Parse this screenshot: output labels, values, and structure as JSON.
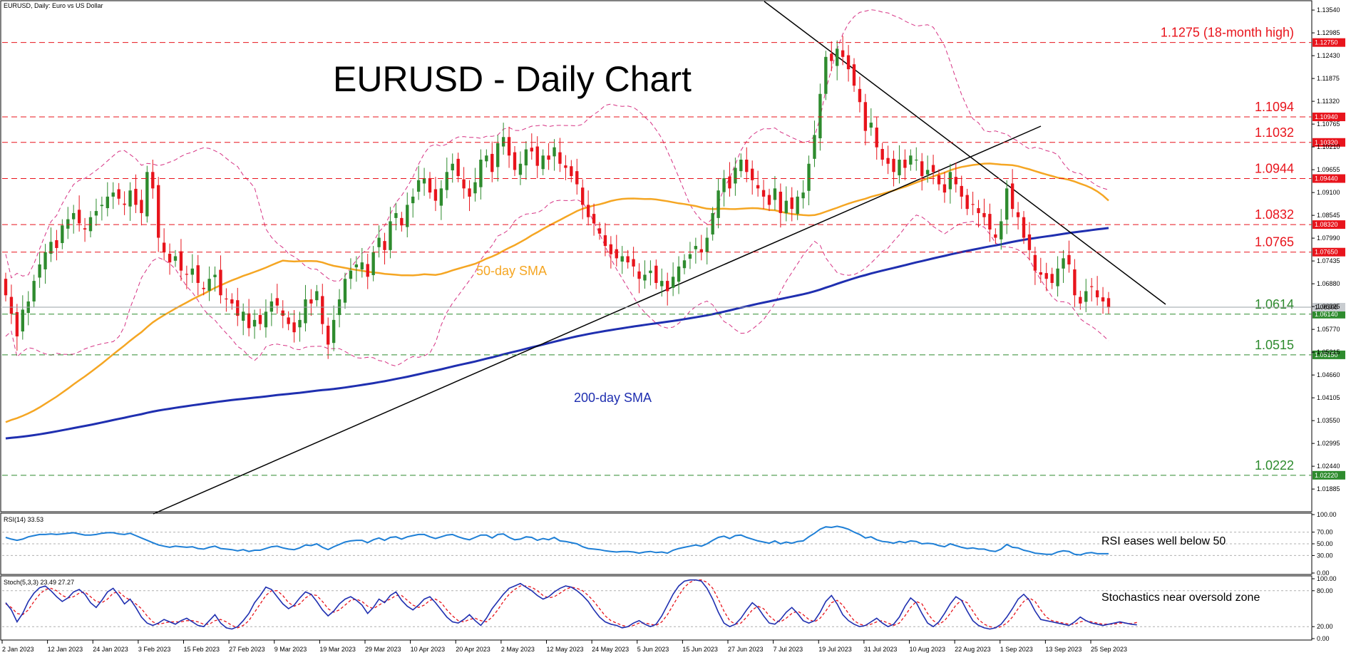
{
  "header": {
    "title": "EURUSD, Daily:  Euro vs US Dollar"
  },
  "chart_title": "EURUSD - Daily Chart",
  "annotations": {
    "sma50": "50-day SMA",
    "sma200": "200-day SMA",
    "rsi_note": "RSI eases well below 50",
    "stoch_note": "Stochastics near oversold zone"
  },
  "indicators": {
    "rsi_label": "RSI(14) 33.53",
    "stoch_label": "Stoch(5,3,3) 23.49 27.27"
  },
  "colors": {
    "bull": "#2e8b2e",
    "bear": "#e8141c",
    "sma50": "#f5a623",
    "sma200": "#1f2fb0",
    "bollinger": "#d63384",
    "resistance": "#e8141c",
    "support": "#2e8b2e",
    "rsi": "#1e7fd6",
    "stoch_main": "#1f2fb0",
    "stoch_signal": "#e8141c"
  },
  "chart_data": {
    "type": "candlestick",
    "title": "EURUSD - Daily Chart",
    "ylim": [
      1.0135,
      1.1375
    ],
    "y_ticks": [
      "1.13540",
      "1.12985",
      "1.12430",
      "1.11875",
      "1.11320",
      "1.10765",
      "1.10210",
      "1.09655",
      "1.09100",
      "1.08545",
      "1.07990",
      "1.07435",
      "1.06880",
      "1.06325",
      "1.05770",
      "1.05215",
      "1.04660",
      "1.04105",
      "1.03550",
      "1.02995",
      "1.02440",
      "1.01885"
    ],
    "x_ticks": [
      "2 Jan 2023",
      "12 Jan 2023",
      "24 Jan 2023",
      "3 Feb 2023",
      "15 Feb 2023",
      "27 Feb 2023",
      "9 Mar 2023",
      "19 Mar 2023",
      "29 Mar 2023",
      "10 Apr 2023",
      "20 Apr 2023",
      "2 May 2023",
      "12 May 2023",
      "24 May 2023",
      "5 Jun 2023",
      "15 Jun 2023",
      "27 Jun 2023",
      "7 Jul 2023",
      "19 Jul 2023",
      "31 Jul 2023",
      "10 Aug 2023",
      "22 Aug 2023",
      "1 Sep 2023",
      "13 Sep 2023",
      "25 Sep 2023"
    ],
    "levels": [
      {
        "value": 1.1275,
        "label": "1.1275 (18-month high)",
        "tag": "1.12750",
        "kind": "resistance"
      },
      {
        "value": 1.1094,
        "label": "1.1094",
        "tag": "1.10940",
        "kind": "resistance"
      },
      {
        "value": 1.1032,
        "label": "1.1032",
        "tag": "1.10320",
        "kind": "resistance"
      },
      {
        "value": 1.0944,
        "label": "1.0944",
        "tag": "1.09440",
        "kind": "resistance"
      },
      {
        "value": 1.0832,
        "label": "1.0832",
        "tag": "1.08320",
        "kind": "resistance"
      },
      {
        "value": 1.0765,
        "label": "1.0765",
        "tag": "1.07650",
        "kind": "resistance"
      },
      {
        "value": 1.0614,
        "label": "1.0614",
        "tag": "1.06140",
        "kind": "support"
      },
      {
        "value": 1.0515,
        "label": "1.0515",
        "tag": "1.05150",
        "kind": "support"
      },
      {
        "value": 1.0222,
        "label": "1.0222",
        "tag": "1.02220",
        "kind": "support"
      }
    ],
    "current_price": {
      "value": 1.0631,
      "tag": "1.06308"
    },
    "closes": [
      1.066,
      1.0615,
      1.056,
      1.0625,
      1.0645,
      1.0695,
      1.0735,
      1.0765,
      1.079,
      1.0775,
      1.083,
      1.0845,
      1.086,
      1.0835,
      1.082,
      1.085,
      1.0865,
      1.088,
      1.09,
      1.091,
      1.0895,
      1.088,
      1.0915,
      1.088,
      1.086,
      1.096,
      1.092,
      1.08,
      1.0765,
      1.074,
      1.0755,
      1.072,
      1.071,
      1.0725,
      1.069,
      1.0675,
      1.07,
      1.071,
      1.066,
      1.065,
      1.064,
      1.061,
      1.062,
      1.058,
      1.06,
      1.059,
      1.062,
      1.0645,
      1.0635,
      1.061,
      1.059,
      1.057,
      1.06,
      1.065,
      1.064,
      1.067,
      1.059,
      1.054,
      1.06,
      1.065,
      1.07,
      1.072,
      1.0735,
      1.074,
      1.0705,
      1.0765,
      1.08,
      1.077,
      1.084,
      1.086,
      1.083,
      1.088,
      1.09,
      1.094,
      1.0945,
      1.091,
      1.089,
      1.092,
      1.096,
      1.098,
      1.095,
      1.092,
      1.09,
      1.0935,
      1.099,
      1.1,
      1.096,
      1.103,
      1.1045,
      1.1,
      1.0965,
      1.098,
      1.1015,
      1.101,
      1.0975,
      1.1,
      1.099,
      1.102,
      1.098,
      1.097,
      1.095,
      1.093,
      1.088,
      1.085,
      1.0835,
      1.081,
      1.078,
      1.076,
      1.075,
      1.0755,
      1.074,
      1.073,
      1.07,
      1.071,
      1.072,
      1.069,
      1.0695,
      1.067,
      1.0705,
      1.073,
      1.0745,
      1.076,
      1.078,
      1.0765,
      1.08,
      1.086,
      1.0915,
      1.0945,
      1.092,
      1.097,
      1.099,
      1.096,
      1.094,
      1.092,
      1.09,
      1.088,
      1.092,
      1.086,
      1.089,
      1.087,
      1.09,
      1.091,
      1.098,
      1.105,
      1.115,
      1.124,
      1.123,
      1.126,
      1.124,
      1.121,
      1.117,
      1.113,
      1.106,
      1.108,
      1.102,
      1.099,
      1.098,
      1.096,
      1.099,
      1.097,
      1.1,
      1.099,
      1.095,
      1.0965,
      1.096,
      1.093,
      1.091,
      1.096,
      1.093,
      1.09,
      1.087,
      1.088,
      1.086,
      1.085,
      1.082,
      1.08,
      1.084,
      1.092,
      1.087,
      1.085,
      1.08,
      1.077,
      1.072,
      1.071,
      1.07,
      1.069,
      1.0725,
      1.075,
      1.0735,
      1.066,
      1.064,
      1.067,
      1.068,
      1.0655,
      1.0645,
      1.063
    ],
    "rsi": {
      "ylim": [
        0,
        100
      ],
      "ticks": [
        "100.00",
        "70.00",
        "50.00",
        "30.00",
        "0.00"
      ],
      "values": [
        61,
        58,
        56,
        58,
        62,
        64,
        66,
        66,
        67,
        66,
        67,
        68,
        69,
        67,
        65,
        65,
        66,
        68,
        69,
        69,
        67,
        66,
        68,
        64,
        60,
        56,
        52,
        48,
        46,
        44,
        46,
        45,
        44,
        45,
        42,
        41,
        44,
        46,
        42,
        41,
        40,
        38,
        40,
        37,
        39,
        39,
        42,
        45,
        46,
        43,
        41,
        40,
        43,
        48,
        47,
        50,
        44,
        40,
        45,
        49,
        53,
        55,
        56,
        56,
        52,
        57,
        60,
        56,
        61,
        62,
        58,
        62,
        64,
        66,
        66,
        62,
        59,
        62,
        65,
        66,
        62,
        59,
        57,
        61,
        65,
        65,
        60,
        66,
        67,
        61,
        57,
        58,
        62,
        61,
        56,
        59,
        57,
        61,
        55,
        54,
        52,
        50,
        45,
        42,
        41,
        40,
        38,
        37,
        36,
        37,
        37,
        36,
        34,
        36,
        37,
        35,
        36,
        34,
        39,
        42,
        44,
        46,
        48,
        46,
        50,
        56,
        61,
        63,
        59,
        64,
        65,
        61,
        58,
        55,
        53,
        51,
        55,
        50,
        53,
        51,
        54,
        55,
        62,
        68,
        75,
        79,
        78,
        80,
        78,
        75,
        70,
        66,
        60,
        62,
        57,
        54,
        53,
        51,
        54,
        52,
        55,
        54,
        50,
        51,
        50,
        47,
        45,
        50,
        47,
        44,
        42,
        43,
        41,
        41,
        38,
        37,
        41,
        49,
        44,
        43,
        39,
        37,
        34,
        33,
        32,
        32,
        36,
        38,
        37,
        32,
        31,
        34,
        35,
        33,
        33,
        33
      ]
    },
    "stoch": {
      "ylim": [
        0,
        100
      ],
      "ticks": [
        "100.00",
        "80.00",
        "20.00",
        "0.00"
      ],
      "main": [
        60,
        48,
        28,
        42,
        62,
        76,
        85,
        88,
        80,
        70,
        62,
        68,
        78,
        82,
        74,
        60,
        52,
        64,
        78,
        84,
        72,
        58,
        66,
        52,
        36,
        26,
        22,
        26,
        32,
        28,
        24,
        30,
        34,
        28,
        22,
        20,
        30,
        40,
        26,
        18,
        16,
        20,
        30,
        42,
        60,
        72,
        86,
        82,
        70,
        58,
        50,
        56,
        68,
        78,
        74,
        62,
        48,
        38,
        46,
        58,
        66,
        70,
        64,
        56,
        42,
        52,
        66,
        60,
        72,
        78,
        64,
        54,
        48,
        56,
        66,
        70,
        60,
        48,
        36,
        28,
        26,
        32,
        40,
        30,
        22,
        34,
        50,
        62,
        74,
        84,
        88,
        92,
        86,
        80,
        72,
        66,
        70,
        78,
        84,
        88,
        86,
        80,
        72,
        62,
        48,
        36,
        28,
        24,
        22,
        18,
        20,
        26,
        30,
        24,
        20,
        24,
        38,
        56,
        74,
        88,
        96,
        98,
        98,
        96,
        84,
        66,
        44,
        26,
        20,
        24,
        34,
        48,
        60,
        52,
        38,
        26,
        24,
        32,
        44,
        52,
        42,
        30,
        26,
        30,
        44,
        62,
        72,
        58,
        40,
        30,
        24,
        20,
        22,
        28,
        34,
        26,
        20,
        24,
        36,
        54,
        68,
        60,
        42,
        26,
        20,
        28,
        42,
        58,
        70,
        64,
        46,
        30,
        22,
        18,
        16,
        18,
        24,
        36,
        50,
        66,
        74,
        64,
        46,
        32,
        30,
        28,
        26,
        24,
        22,
        28,
        36,
        30,
        26,
        24,
        22,
        24,
        26,
        28,
        26,
        24,
        23
      ],
      "signal": [
        58,
        52,
        42,
        40,
        48,
        62,
        74,
        82,
        84,
        80,
        72,
        68,
        70,
        76,
        78,
        70,
        62,
        60,
        66,
        76,
        78,
        70,
        64,
        58,
        50,
        38,
        28,
        24,
        26,
        28,
        28,
        28,
        30,
        30,
        28,
        24,
        24,
        30,
        32,
        28,
        22,
        18,
        22,
        30,
        44,
        58,
        72,
        80,
        80,
        72,
        60,
        54,
        58,
        68,
        74,
        72,
        62,
        50,
        44,
        48,
        56,
        64,
        66,
        62,
        54,
        50,
        56,
        62,
        66,
        72,
        72,
        64,
        56,
        52,
        56,
        64,
        66,
        60,
        48,
        38,
        30,
        28,
        32,
        34,
        30,
        28,
        36,
        48,
        62,
        74,
        82,
        88,
        88,
        86,
        80,
        72,
        68,
        70,
        76,
        82,
        86,
        84,
        80,
        72,
        62,
        50,
        38,
        30,
        26,
        22,
        20,
        22,
        26,
        26,
        24,
        22,
        28,
        40,
        56,
        72,
        86,
        94,
        98,
        98,
        94,
        84,
        66,
        46,
        30,
        24,
        26,
        36,
        48,
        54,
        50,
        38,
        30,
        28,
        34,
        42,
        46,
        40,
        32,
        28,
        34,
        46,
        60,
        64,
        56,
        42,
        30,
        24,
        22,
        24,
        28,
        30,
        26,
        22,
        26,
        38,
        52,
        62,
        58,
        42,
        30,
        24,
        30,
        42,
        56,
        64,
        60,
        46,
        32,
        24,
        20,
        18,
        20,
        26,
        36,
        50,
        62,
        68,
        62,
        48,
        36,
        30,
        28,
        26,
        24,
        24,
        28,
        30,
        28,
        26,
        24,
        24,
        24,
        26,
        26,
        25,
        27
      ]
    }
  }
}
